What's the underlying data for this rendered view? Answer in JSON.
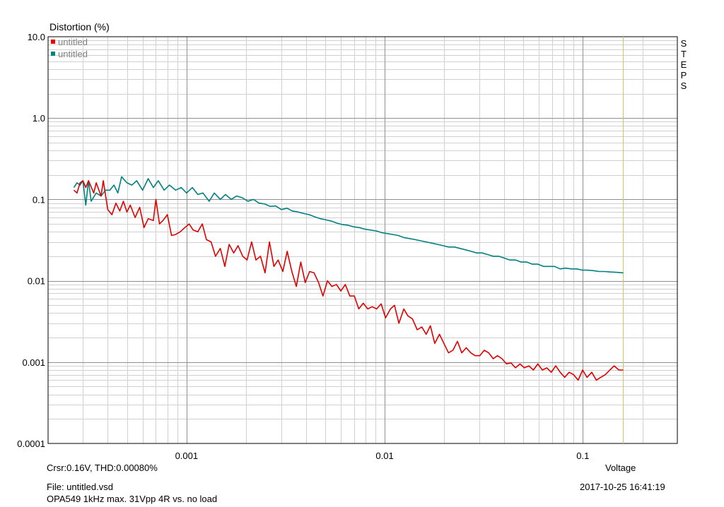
{
  "chart_data": {
    "type": "line",
    "title": "",
    "ylabel": "Distortion (%)",
    "xlabel": "Voltage",
    "xscale": "log",
    "yscale": "log",
    "xlim": [
      0.0002,
      0.3
    ],
    "ylim": [
      0.0001,
      10
    ],
    "grid": true,
    "legend_position": "top-left",
    "x_ticks": [
      0.001,
      0.01,
      0.1
    ],
    "x_tick_labels": [
      "0.001",
      "0.01",
      "0.1"
    ],
    "y_ticks": [
      10,
      1,
      0.1,
      0.01,
      0.001,
      0.0001
    ],
    "y_tick_labels": [
      "10.0",
      "1.0",
      "0.1",
      "0.01",
      "0.001",
      "0.0001"
    ],
    "cursor_x": 0.16,
    "series": [
      {
        "name": "untitled",
        "color": "#e00000",
        "points": [
          [
            0.00027,
            0.13
          ],
          [
            0.00028,
            0.12
          ],
          [
            0.00029,
            0.16
          ],
          [
            0.0003,
            0.17
          ],
          [
            0.00031,
            0.14
          ],
          [
            0.00032,
            0.17
          ],
          [
            0.00034,
            0.12
          ],
          [
            0.00035,
            0.16
          ],
          [
            0.00037,
            0.11
          ],
          [
            0.00038,
            0.17
          ],
          [
            0.0004,
            0.075
          ],
          [
            0.00042,
            0.065
          ],
          [
            0.00044,
            0.09
          ],
          [
            0.00046,
            0.072
          ],
          [
            0.00048,
            0.095
          ],
          [
            0.0005,
            0.07
          ],
          [
            0.00052,
            0.085
          ],
          [
            0.00055,
            0.06
          ],
          [
            0.00058,
            0.08
          ],
          [
            0.00061,
            0.045
          ],
          [
            0.00064,
            0.058
          ],
          [
            0.00068,
            0.055
          ],
          [
            0.0007,
            0.1
          ],
          [
            0.00073,
            0.05
          ],
          [
            0.00076,
            0.055
          ],
          [
            0.0008,
            0.065
          ],
          [
            0.00084,
            0.036
          ],
          [
            0.00088,
            0.037
          ],
          [
            0.00093,
            0.04
          ],
          [
            0.00098,
            0.045
          ],
          [
            0.00103,
            0.05
          ],
          [
            0.00108,
            0.042
          ],
          [
            0.00114,
            0.04
          ],
          [
            0.0012,
            0.05
          ],
          [
            0.00126,
            0.032
          ],
          [
            0.00133,
            0.03
          ],
          [
            0.0014,
            0.02
          ],
          [
            0.00148,
            0.025
          ],
          [
            0.00156,
            0.015
          ],
          [
            0.00164,
            0.028
          ],
          [
            0.00173,
            0.022
          ],
          [
            0.00182,
            0.027
          ],
          [
            0.00192,
            0.02
          ],
          [
            0.00202,
            0.018
          ],
          [
            0.00213,
            0.03
          ],
          [
            0.00224,
            0.018
          ],
          [
            0.00236,
            0.02
          ],
          [
            0.00249,
            0.0125
          ],
          [
            0.00262,
            0.03
          ],
          [
            0.00276,
            0.015
          ],
          [
            0.0029,
            0.018
          ],
          [
            0.00306,
            0.013
          ],
          [
            0.00322,
            0.023
          ],
          [
            0.0034,
            0.013
          ],
          [
            0.00358,
            0.0085
          ],
          [
            0.00377,
            0.017
          ],
          [
            0.00397,
            0.0095
          ],
          [
            0.00418,
            0.013
          ],
          [
            0.0044,
            0.0125
          ],
          [
            0.00464,
            0.0095
          ],
          [
            0.00488,
            0.0065
          ],
          [
            0.00514,
            0.01
          ],
          [
            0.00542,
            0.0085
          ],
          [
            0.00571,
            0.009
          ],
          [
            0.00601,
            0.0075
          ],
          [
            0.00633,
            0.009
          ],
          [
            0.00667,
            0.0065
          ],
          [
            0.00703,
            0.0065
          ],
          [
            0.0074,
            0.0045
          ],
          [
            0.0078,
            0.0053
          ],
          [
            0.00821,
            0.0045
          ],
          [
            0.00865,
            0.0048
          ],
          [
            0.00911,
            0.0045
          ],
          [
            0.0096,
            0.0052
          ],
          [
            0.0101,
            0.0035
          ],
          [
            0.0107,
            0.0045
          ],
          [
            0.0112,
            0.005
          ],
          [
            0.0118,
            0.003
          ],
          [
            0.0125,
            0.0045
          ],
          [
            0.0131,
            0.0037
          ],
          [
            0.0138,
            0.0034
          ],
          [
            0.0146,
            0.0025
          ],
          [
            0.0154,
            0.0027
          ],
          [
            0.0162,
            0.0022
          ],
          [
            0.017,
            0.0028
          ],
          [
            0.0179,
            0.0017
          ],
          [
            0.0189,
            0.0022
          ],
          [
            0.0199,
            0.0017
          ],
          [
            0.021,
            0.0013
          ],
          [
            0.0221,
            0.0014
          ],
          [
            0.0233,
            0.0018
          ],
          [
            0.0245,
            0.0013
          ],
          [
            0.0258,
            0.0015
          ],
          [
            0.0272,
            0.0013
          ],
          [
            0.0286,
            0.0012
          ],
          [
            0.0302,
            0.0012
          ],
          [
            0.0318,
            0.0014
          ],
          [
            0.0335,
            0.0013
          ],
          [
            0.0353,
            0.0011
          ],
          [
            0.0371,
            0.0012
          ],
          [
            0.0391,
            0.0011
          ],
          [
            0.0412,
            0.00095
          ],
          [
            0.0434,
            0.00098
          ],
          [
            0.0457,
            0.00085
          ],
          [
            0.0482,
            0.00095
          ],
          [
            0.0507,
            0.00085
          ],
          [
            0.0534,
            0.0009
          ],
          [
            0.0563,
            0.0008
          ],
          [
            0.0593,
            0.00095
          ],
          [
            0.0625,
            0.0008
          ],
          [
            0.0658,
            0.00085
          ],
          [
            0.0693,
            0.00075
          ],
          [
            0.073,
            0.0009
          ],
          [
            0.0769,
            0.00075
          ],
          [
            0.081,
            0.00065
          ],
          [
            0.0853,
            0.00075
          ],
          [
            0.0899,
            0.0007
          ],
          [
            0.0947,
            0.0006
          ],
          [
            0.0998,
            0.0008
          ],
          [
            0.105,
            0.00065
          ],
          [
            0.111,
            0.00075
          ],
          [
            0.117,
            0.0006
          ],
          [
            0.123,
            0.00065
          ],
          [
            0.13,
            0.0007
          ],
          [
            0.137,
            0.0008
          ],
          [
            0.144,
            0.0009
          ],
          [
            0.152,
            0.0008
          ],
          [
            0.16,
            0.0008
          ]
        ]
      },
      {
        "name": "untitled",
        "color": "#008080",
        "points": [
          [
            0.00027,
            0.14
          ],
          [
            0.00028,
            0.16
          ],
          [
            0.00029,
            0.15
          ],
          [
            0.0003,
            0.17
          ],
          [
            0.00031,
            0.085
          ],
          [
            0.00032,
            0.17
          ],
          [
            0.00033,
            0.095
          ],
          [
            0.00035,
            0.12
          ],
          [
            0.00037,
            0.11
          ],
          [
            0.00039,
            0.13
          ],
          [
            0.00041,
            0.13
          ],
          [
            0.00043,
            0.15
          ],
          [
            0.00045,
            0.12
          ],
          [
            0.00047,
            0.19
          ],
          [
            0.0005,
            0.16
          ],
          [
            0.00053,
            0.15
          ],
          [
            0.00056,
            0.17
          ],
          [
            0.0006,
            0.13
          ],
          [
            0.00064,
            0.18
          ],
          [
            0.00068,
            0.14
          ],
          [
            0.00072,
            0.17
          ],
          [
            0.00077,
            0.13
          ],
          [
            0.00082,
            0.15
          ],
          [
            0.00088,
            0.13
          ],
          [
            0.00094,
            0.14
          ],
          [
            0.001,
            0.12
          ],
          [
            0.00107,
            0.14
          ],
          [
            0.00114,
            0.115
          ],
          [
            0.00121,
            0.12
          ],
          [
            0.0013,
            0.095
          ],
          [
            0.00138,
            0.12
          ],
          [
            0.00148,
            0.1
          ],
          [
            0.00157,
            0.115
          ],
          [
            0.00168,
            0.1
          ],
          [
            0.00179,
            0.11
          ],
          [
            0.00191,
            0.105
          ],
          [
            0.00204,
            0.095
          ],
          [
            0.00218,
            0.1
          ],
          [
            0.00232,
            0.09
          ],
          [
            0.00248,
            0.088
          ],
          [
            0.00264,
            0.082
          ],
          [
            0.00282,
            0.083
          ],
          [
            0.00301,
            0.075
          ],
          [
            0.00321,
            0.078
          ],
          [
            0.00342,
            0.072
          ],
          [
            0.00365,
            0.07
          ],
          [
            0.0039,
            0.067
          ],
          [
            0.00416,
            0.065
          ],
          [
            0.00444,
            0.061
          ],
          [
            0.00474,
            0.058
          ],
          [
            0.00506,
            0.056
          ],
          [
            0.0054,
            0.054
          ],
          [
            0.00576,
            0.051
          ],
          [
            0.00614,
            0.049
          ],
          [
            0.00655,
            0.048
          ],
          [
            0.00699,
            0.046
          ],
          [
            0.00746,
            0.045
          ],
          [
            0.00796,
            0.043
          ],
          [
            0.00849,
            0.042
          ],
          [
            0.00906,
            0.041
          ],
          [
            0.00967,
            0.039
          ],
          [
            0.0103,
            0.038
          ],
          [
            0.011,
            0.037
          ],
          [
            0.0117,
            0.036
          ],
          [
            0.0125,
            0.034
          ],
          [
            0.0134,
            0.033
          ],
          [
            0.0143,
            0.032
          ],
          [
            0.0152,
            0.031
          ],
          [
            0.0162,
            0.03
          ],
          [
            0.0173,
            0.029
          ],
          [
            0.0185,
            0.028
          ],
          [
            0.0197,
            0.027
          ],
          [
            0.021,
            0.026
          ],
          [
            0.0225,
            0.026
          ],
          [
            0.024,
            0.025
          ],
          [
            0.0256,
            0.024
          ],
          [
            0.0273,
            0.023
          ],
          [
            0.0291,
            0.022
          ],
          [
            0.031,
            0.022
          ],
          [
            0.0331,
            0.021
          ],
          [
            0.0353,
            0.02
          ],
          [
            0.0377,
            0.02
          ],
          [
            0.0402,
            0.019
          ],
          [
            0.0429,
            0.018
          ],
          [
            0.0458,
            0.018
          ],
          [
            0.0488,
            0.017
          ],
          [
            0.0521,
            0.017
          ],
          [
            0.0556,
            0.016
          ],
          [
            0.0593,
            0.016
          ],
          [
            0.0633,
            0.015
          ],
          [
            0.0675,
            0.015
          ],
          [
            0.072,
            0.015
          ],
          [
            0.0768,
            0.014
          ],
          [
            0.082,
            0.0143
          ],
          [
            0.0875,
            0.014
          ],
          [
            0.0933,
            0.014
          ],
          [
            0.0996,
            0.0135
          ],
          [
            0.106,
            0.0135
          ],
          [
            0.113,
            0.0133
          ],
          [
            0.121,
            0.013
          ],
          [
            0.129,
            0.013
          ],
          [
            0.138,
            0.0128
          ],
          [
            0.147,
            0.0127
          ],
          [
            0.16,
            0.0125
          ]
        ]
      }
    ]
  },
  "side_label": "STEPS",
  "cursor_readout": "Crsr:0.16V, THD:0.00080%",
  "file_line": "File: untitled.vsd",
  "description_line": "OPA549 1kHz max. 31Vpp 4R vs. no load",
  "timestamp": "2017-10-25  16:41:19",
  "colors": {
    "grid_major": "#909090",
    "grid_minor": "#d0d0d0",
    "cursor": "#c8c864",
    "legend_text": "#808080"
  }
}
